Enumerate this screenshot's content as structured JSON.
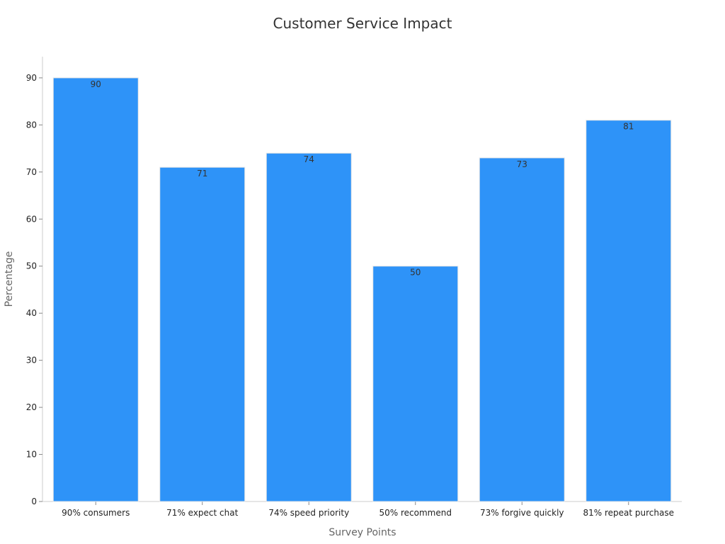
{
  "chart_data": {
    "type": "bar",
    "title": "Customer Service Impact",
    "xlabel": "Survey Points",
    "ylabel": "Percentage",
    "categories": [
      "90% consumers",
      "71% expect chat",
      "74% speed priority",
      "50% recommend",
      "73% forgive quickly",
      "81% repeat purchase"
    ],
    "values": [
      90,
      71,
      74,
      50,
      73,
      81
    ],
    "data_labels": [
      "90",
      "71",
      "74",
      "50",
      "73",
      "81"
    ],
    "yticks": [
      0,
      10,
      20,
      30,
      40,
      50,
      60,
      70,
      80,
      90
    ],
    "ylim": [
      0,
      94.5
    ],
    "grid": false,
    "legend": "none",
    "bar_color": "#2e93f8"
  }
}
